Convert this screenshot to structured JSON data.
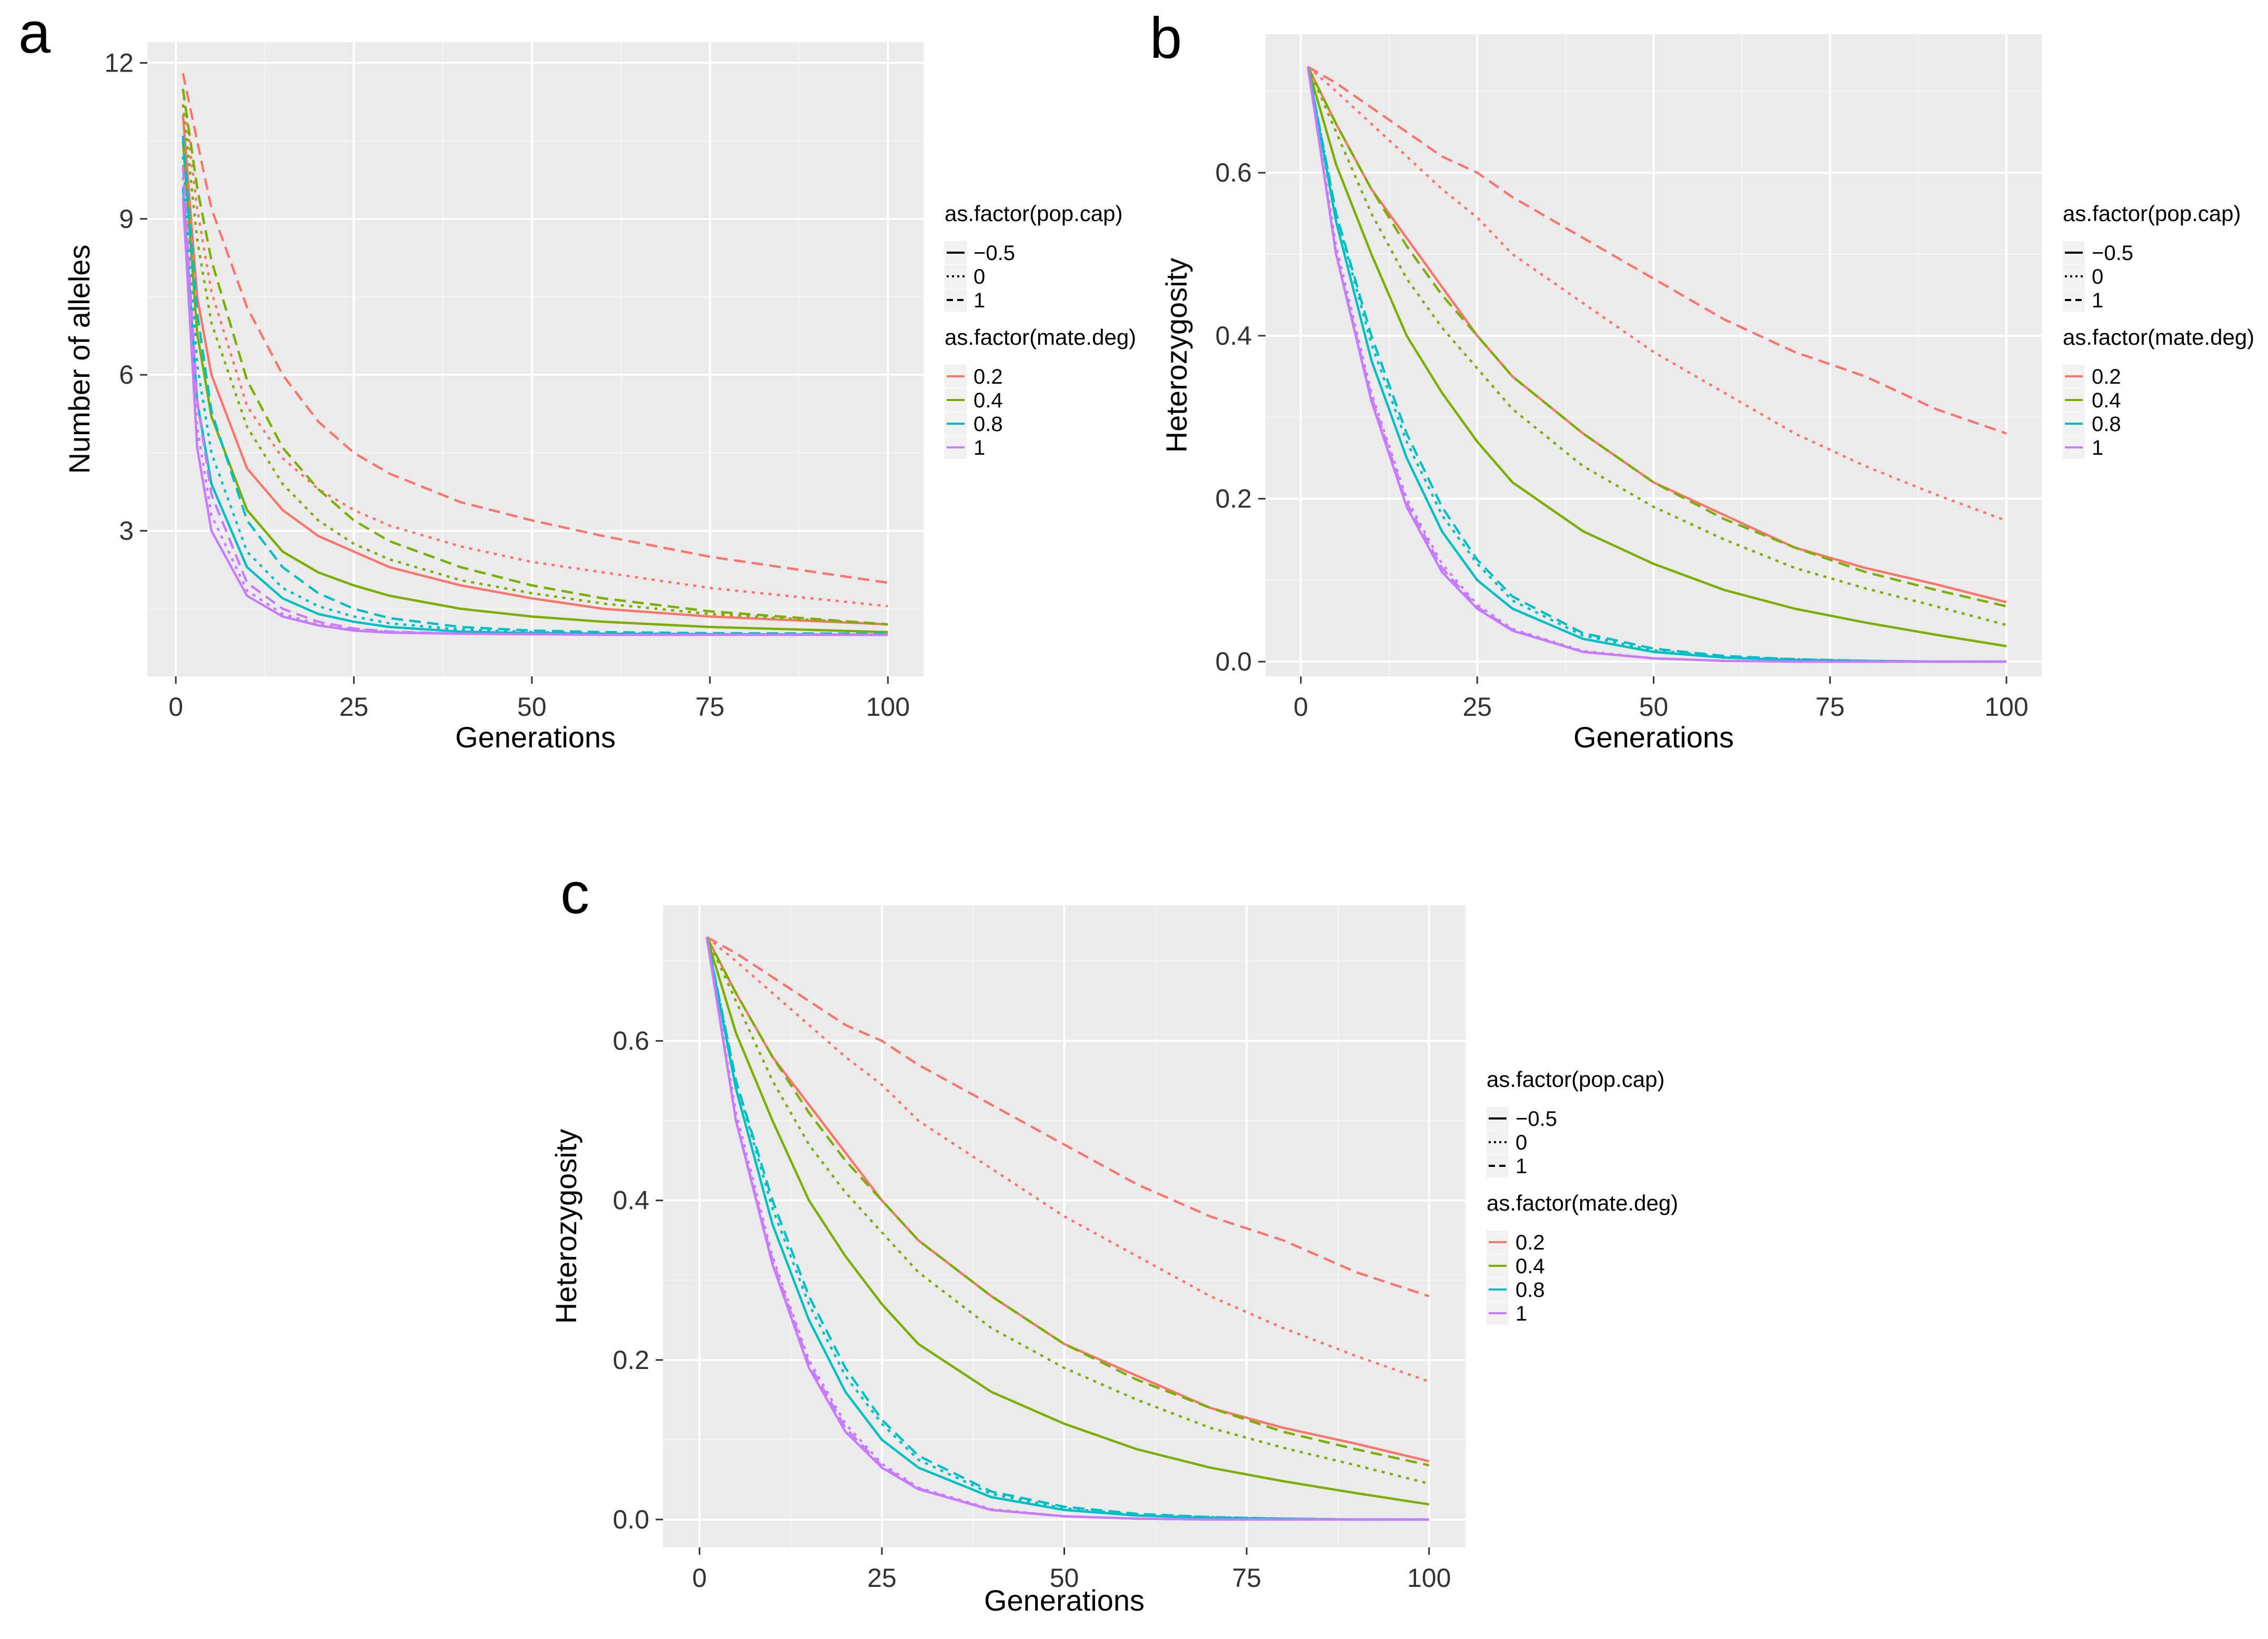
{
  "figure": {
    "panel_labels": [
      "a",
      "b",
      "c"
    ]
  },
  "legend": {
    "linetype_title": "as.factor(pop.cap)",
    "linetype_levels": [
      "−0.5",
      "0",
      "1"
    ],
    "color_title": "as.factor(mate.deg)",
    "color_levels": [
      "0.2",
      "0.4",
      "0.8",
      "1"
    ],
    "colors": [
      "#F8766D",
      "#7CAE00",
      "#00BFC4",
      "#C77CFF"
    ]
  },
  "chart_data": [
    {
      "panel": "a",
      "type": "line",
      "xlabel": "Generations",
      "ylabel": "Number of alleles",
      "xlim": [
        -4,
        105
      ],
      "ylim": [
        0.2,
        12.4
      ],
      "xticks": [
        0,
        25,
        50,
        75,
        100
      ],
      "yticks": [
        3,
        6,
        9,
        12
      ],
      "x": [
        1,
        3,
        5,
        10,
        15,
        20,
        25,
        30,
        40,
        50,
        60,
        75,
        100
      ],
      "series": [
        {
          "mate_deg": "0.2",
          "pop_cap": "−0.5",
          "values": [
            11.0,
            7.5,
            6.0,
            4.2,
            3.4,
            2.9,
            2.6,
            2.3,
            1.95,
            1.7,
            1.5,
            1.35,
            1.2
          ]
        },
        {
          "mate_deg": "0.2",
          "pop_cap": "0",
          "values": [
            11.5,
            9.2,
            7.6,
            5.4,
            4.4,
            3.8,
            3.4,
            3.1,
            2.7,
            2.4,
            2.2,
            1.9,
            1.55
          ]
        },
        {
          "mate_deg": "0.2",
          "pop_cap": "1",
          "values": [
            11.8,
            10.5,
            9.2,
            7.3,
            6.0,
            5.1,
            4.5,
            4.1,
            3.55,
            3.2,
            2.9,
            2.5,
            2.0
          ]
        },
        {
          "mate_deg": "0.4",
          "pop_cap": "−0.5",
          "values": [
            10.5,
            6.8,
            5.2,
            3.4,
            2.6,
            2.2,
            1.95,
            1.75,
            1.5,
            1.35,
            1.25,
            1.15,
            1.05
          ]
        },
        {
          "mate_deg": "0.4",
          "pop_cap": "0",
          "values": [
            11.2,
            8.6,
            7.0,
            5.0,
            3.9,
            3.2,
            2.75,
            2.45,
            2.05,
            1.8,
            1.6,
            1.4,
            1.2
          ]
        },
        {
          "mate_deg": "0.4",
          "pop_cap": "1",
          "values": [
            11.5,
            9.6,
            8.2,
            5.9,
            4.6,
            3.8,
            3.2,
            2.8,
            2.3,
            1.95,
            1.7,
            1.45,
            1.2
          ]
        },
        {
          "mate_deg": "0.8",
          "pop_cap": "−0.5",
          "values": [
            9.6,
            5.5,
            3.9,
            2.3,
            1.7,
            1.4,
            1.25,
            1.15,
            1.06,
            1.03,
            1.02,
            1.01,
            1.0
          ]
        },
        {
          "mate_deg": "0.8",
          "pop_cap": "0",
          "values": [
            10.2,
            6.2,
            4.5,
            2.6,
            1.9,
            1.55,
            1.35,
            1.22,
            1.1,
            1.05,
            1.03,
            1.01,
            1.0
          ]
        },
        {
          "mate_deg": "0.8",
          "pop_cap": "1",
          "values": [
            10.6,
            7.2,
            5.3,
            3.2,
            2.3,
            1.8,
            1.5,
            1.32,
            1.15,
            1.08,
            1.05,
            1.03,
            1.02
          ]
        },
        {
          "mate_deg": "1",
          "pop_cap": "−0.5",
          "values": [
            9.4,
            4.6,
            3.0,
            1.75,
            1.35,
            1.18,
            1.08,
            1.04,
            1.02,
            1.01,
            1.0,
            1.0,
            1.0
          ]
        },
        {
          "mate_deg": "1",
          "pop_cap": "0",
          "values": [
            9.8,
            5.0,
            3.3,
            1.85,
            1.4,
            1.2,
            1.1,
            1.05,
            1.02,
            1.01,
            1.0,
            1.0,
            1.0
          ]
        },
        {
          "mate_deg": "1",
          "pop_cap": "1",
          "values": [
            10.0,
            5.5,
            3.7,
            2.0,
            1.5,
            1.25,
            1.12,
            1.06,
            1.02,
            1.01,
            1.0,
            1.0,
            1.0
          ]
        }
      ]
    },
    {
      "panel": "b",
      "type": "line",
      "xlabel": "Generations",
      "ylabel": "Heterozygosity",
      "xlim": [
        -5,
        105
      ],
      "ylim": [
        -0.018,
        0.77
      ],
      "xticks": [
        0,
        25,
        50,
        75,
        100
      ],
      "yticks": [
        0.0,
        0.2,
        0.4,
        0.6
      ],
      "x": [
        1,
        5,
        10,
        15,
        20,
        25,
        30,
        40,
        50,
        60,
        70,
        80,
        90,
        100
      ],
      "series": [
        {
          "mate_deg": "0.2",
          "pop_cap": "−0.5",
          "values": [
            0.73,
            0.66,
            0.58,
            0.52,
            0.46,
            0.4,
            0.35,
            0.28,
            0.22,
            0.18,
            0.14,
            0.115,
            0.095,
            0.073
          ]
        },
        {
          "mate_deg": "0.2",
          "pop_cap": "0",
          "values": [
            0.73,
            0.7,
            0.66,
            0.62,
            0.58,
            0.545,
            0.5,
            0.44,
            0.38,
            0.33,
            0.28,
            0.24,
            0.205,
            0.173
          ]
        },
        {
          "mate_deg": "0.2",
          "pop_cap": "1",
          "values": [
            0.73,
            0.71,
            0.68,
            0.65,
            0.62,
            0.6,
            0.57,
            0.52,
            0.47,
            0.42,
            0.38,
            0.35,
            0.31,
            0.28
          ]
        },
        {
          "mate_deg": "0.4",
          "pop_cap": "−0.5",
          "values": [
            0.73,
            0.61,
            0.5,
            0.4,
            0.33,
            0.27,
            0.22,
            0.16,
            0.12,
            0.088,
            0.065,
            0.048,
            0.033,
            0.019
          ]
        },
        {
          "mate_deg": "0.4",
          "pop_cap": "0",
          "values": [
            0.73,
            0.65,
            0.55,
            0.47,
            0.41,
            0.36,
            0.31,
            0.24,
            0.19,
            0.15,
            0.115,
            0.09,
            0.068,
            0.045
          ]
        },
        {
          "mate_deg": "0.4",
          "pop_cap": "1",
          "values": [
            0.73,
            0.66,
            0.58,
            0.51,
            0.45,
            0.4,
            0.35,
            0.28,
            0.22,
            0.175,
            0.14,
            0.11,
            0.088,
            0.068
          ]
        },
        {
          "mate_deg": "0.8",
          "pop_cap": "−0.5",
          "values": [
            0.73,
            0.54,
            0.37,
            0.25,
            0.16,
            0.1,
            0.065,
            0.028,
            0.012,
            0.005,
            0.002,
            0.001,
            0.0,
            0.0
          ]
        },
        {
          "mate_deg": "0.8",
          "pop_cap": "0",
          "values": [
            0.73,
            0.55,
            0.39,
            0.27,
            0.18,
            0.12,
            0.075,
            0.032,
            0.014,
            0.006,
            0.003,
            0.001,
            0.0,
            0.0
          ]
        },
        {
          "mate_deg": "0.8",
          "pop_cap": "1",
          "values": [
            0.73,
            0.55,
            0.4,
            0.28,
            0.19,
            0.125,
            0.08,
            0.035,
            0.016,
            0.007,
            0.003,
            0.001,
            0.0,
            0.0
          ]
        },
        {
          "mate_deg": "1",
          "pop_cap": "−0.5",
          "values": [
            0.73,
            0.5,
            0.32,
            0.19,
            0.11,
            0.065,
            0.038,
            0.012,
            0.004,
            0.001,
            0.0,
            0.0,
            0.0,
            0.0
          ]
        },
        {
          "mate_deg": "1",
          "pop_cap": "0",
          "values": [
            0.73,
            0.51,
            0.33,
            0.2,
            0.12,
            0.07,
            0.04,
            0.013,
            0.004,
            0.001,
            0.0,
            0.0,
            0.0,
            0.0
          ]
        },
        {
          "mate_deg": "1",
          "pop_cap": "1",
          "values": [
            0.73,
            0.5,
            0.325,
            0.195,
            0.115,
            0.067,
            0.039,
            0.012,
            0.004,
            0.001,
            0.0,
            0.0,
            0.0,
            0.0
          ]
        }
      ]
    },
    {
      "panel": "c",
      "type": "line",
      "xlabel": "Generations",
      "ylabel": "Heterozygosity",
      "xlim": [
        -5,
        105
      ],
      "ylim": [
        -0.035,
        0.77
      ],
      "xticks": [
        0,
        25,
        50,
        75,
        100
      ],
      "yticks": [
        0.0,
        0.2,
        0.4,
        0.6
      ],
      "x": [
        1,
        5,
        10,
        15,
        20,
        25,
        30,
        40,
        50,
        60,
        70,
        80,
        90,
        100
      ],
      "series": [
        {
          "mate_deg": "0.2",
          "pop_cap": "−0.5",
          "values": [
            0.73,
            0.66,
            0.58,
            0.52,
            0.46,
            0.4,
            0.35,
            0.28,
            0.22,
            0.18,
            0.14,
            0.115,
            0.095,
            0.073
          ]
        },
        {
          "mate_deg": "0.2",
          "pop_cap": "0",
          "values": [
            0.73,
            0.7,
            0.66,
            0.62,
            0.58,
            0.545,
            0.5,
            0.44,
            0.38,
            0.33,
            0.28,
            0.24,
            0.205,
            0.173
          ]
        },
        {
          "mate_deg": "0.2",
          "pop_cap": "1",
          "values": [
            0.73,
            0.71,
            0.68,
            0.65,
            0.62,
            0.6,
            0.57,
            0.52,
            0.47,
            0.42,
            0.38,
            0.35,
            0.31,
            0.28
          ]
        },
        {
          "mate_deg": "0.4",
          "pop_cap": "−0.5",
          "values": [
            0.73,
            0.61,
            0.5,
            0.4,
            0.33,
            0.27,
            0.22,
            0.16,
            0.12,
            0.088,
            0.065,
            0.048,
            0.033,
            0.019
          ]
        },
        {
          "mate_deg": "0.4",
          "pop_cap": "0",
          "values": [
            0.73,
            0.65,
            0.55,
            0.47,
            0.41,
            0.36,
            0.31,
            0.24,
            0.19,
            0.15,
            0.115,
            0.09,
            0.068,
            0.045
          ]
        },
        {
          "mate_deg": "0.4",
          "pop_cap": "1",
          "values": [
            0.73,
            0.66,
            0.58,
            0.51,
            0.45,
            0.4,
            0.35,
            0.28,
            0.22,
            0.175,
            0.14,
            0.11,
            0.088,
            0.068
          ]
        },
        {
          "mate_deg": "0.8",
          "pop_cap": "−0.5",
          "values": [
            0.73,
            0.54,
            0.37,
            0.25,
            0.16,
            0.1,
            0.065,
            0.028,
            0.012,
            0.005,
            0.002,
            0.001,
            0.0,
            0.0
          ]
        },
        {
          "mate_deg": "0.8",
          "pop_cap": "0",
          "values": [
            0.73,
            0.55,
            0.39,
            0.27,
            0.18,
            0.12,
            0.075,
            0.032,
            0.014,
            0.006,
            0.003,
            0.001,
            0.0,
            0.0
          ]
        },
        {
          "mate_deg": "0.8",
          "pop_cap": "1",
          "values": [
            0.73,
            0.55,
            0.4,
            0.28,
            0.19,
            0.125,
            0.08,
            0.035,
            0.016,
            0.007,
            0.003,
            0.001,
            0.0,
            0.0
          ]
        },
        {
          "mate_deg": "1",
          "pop_cap": "−0.5",
          "values": [
            0.73,
            0.5,
            0.32,
            0.19,
            0.11,
            0.065,
            0.038,
            0.012,
            0.004,
            0.001,
            0.0,
            0.0,
            0.0,
            0.0
          ]
        },
        {
          "mate_deg": "1",
          "pop_cap": "0",
          "values": [
            0.73,
            0.51,
            0.33,
            0.2,
            0.12,
            0.07,
            0.04,
            0.013,
            0.004,
            0.001,
            0.0,
            0.0,
            0.0,
            0.0
          ]
        },
        {
          "mate_deg": "1",
          "pop_cap": "1",
          "values": [
            0.73,
            0.5,
            0.325,
            0.195,
            0.115,
            0.067,
            0.039,
            0.012,
            0.004,
            0.001,
            0.0,
            0.0,
            0.0,
            0.0
          ]
        }
      ]
    }
  ]
}
